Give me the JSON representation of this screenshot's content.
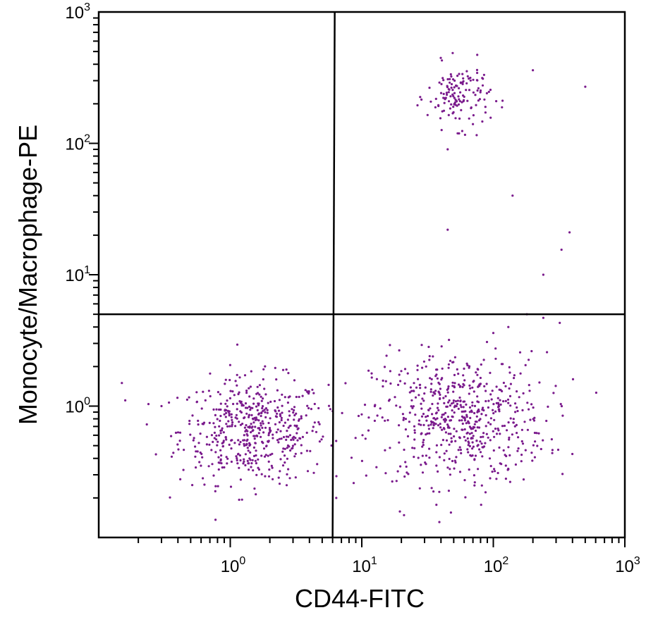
{
  "chart_data": {
    "type": "scatter",
    "xlabel": "CD44-FITC",
    "ylabel": "Monocyte/Macrophage-PE",
    "xscale": "log",
    "yscale": "log",
    "xlim": [
      0.1,
      1000
    ],
    "ylim": [
      0.1,
      1000
    ],
    "x_ticks": [
      {
        "base": "10",
        "exp": "0",
        "value": 1
      },
      {
        "base": "10",
        "exp": "1",
        "value": 10
      },
      {
        "base": "10",
        "exp": "2",
        "value": 100
      },
      {
        "base": "10",
        "exp": "3",
        "value": 1000
      }
    ],
    "y_ticks": [
      {
        "base": "10",
        "exp": "0",
        "value": 1
      },
      {
        "base": "10",
        "exp": "1",
        "value": 10
      },
      {
        "base": "10",
        "exp": "2",
        "value": 100
      },
      {
        "base": "10",
        "exp": "3",
        "value": 1000
      }
    ],
    "quadrant_gates": {
      "x": 6.0,
      "y": 5.0
    },
    "grid": false,
    "point_color": "#7a1a8c",
    "line_color": "#000000",
    "populations": [
      {
        "label": "CD44- lower-left cluster",
        "center_x": 1.5,
        "center_y": 0.65,
        "x_spread_log": 0.28,
        "y_spread_log": 0.2,
        "count": 520
      },
      {
        "label": "CD44+ lower-right cluster",
        "center_x": 55,
        "center_y": 0.8,
        "x_spread_log": 0.33,
        "y_spread_log": 0.25,
        "count": 620
      },
      {
        "label": "CD44+ Monocyte/Macrophage+ cluster",
        "center_x": 55,
        "center_y": 230,
        "x_spread_log": 0.12,
        "y_spread_log": 0.12,
        "count": 140
      }
    ],
    "outliers": [
      [
        0.15,
        1.5
      ],
      [
        0.3,
        1.0
      ],
      [
        500,
        270
      ],
      [
        140,
        40
      ],
      [
        45,
        22
      ],
      [
        380,
        21
      ],
      [
        330,
        15.5
      ],
      [
        240,
        10
      ],
      [
        45,
        90
      ],
      [
        320,
        4.3
      ],
      [
        240,
        4.7
      ],
      [
        180,
        5.0
      ],
      [
        130,
        4.0
      ],
      [
        100,
        3.6
      ],
      [
        70,
        140
      ],
      [
        200,
        360
      ]
    ]
  }
}
